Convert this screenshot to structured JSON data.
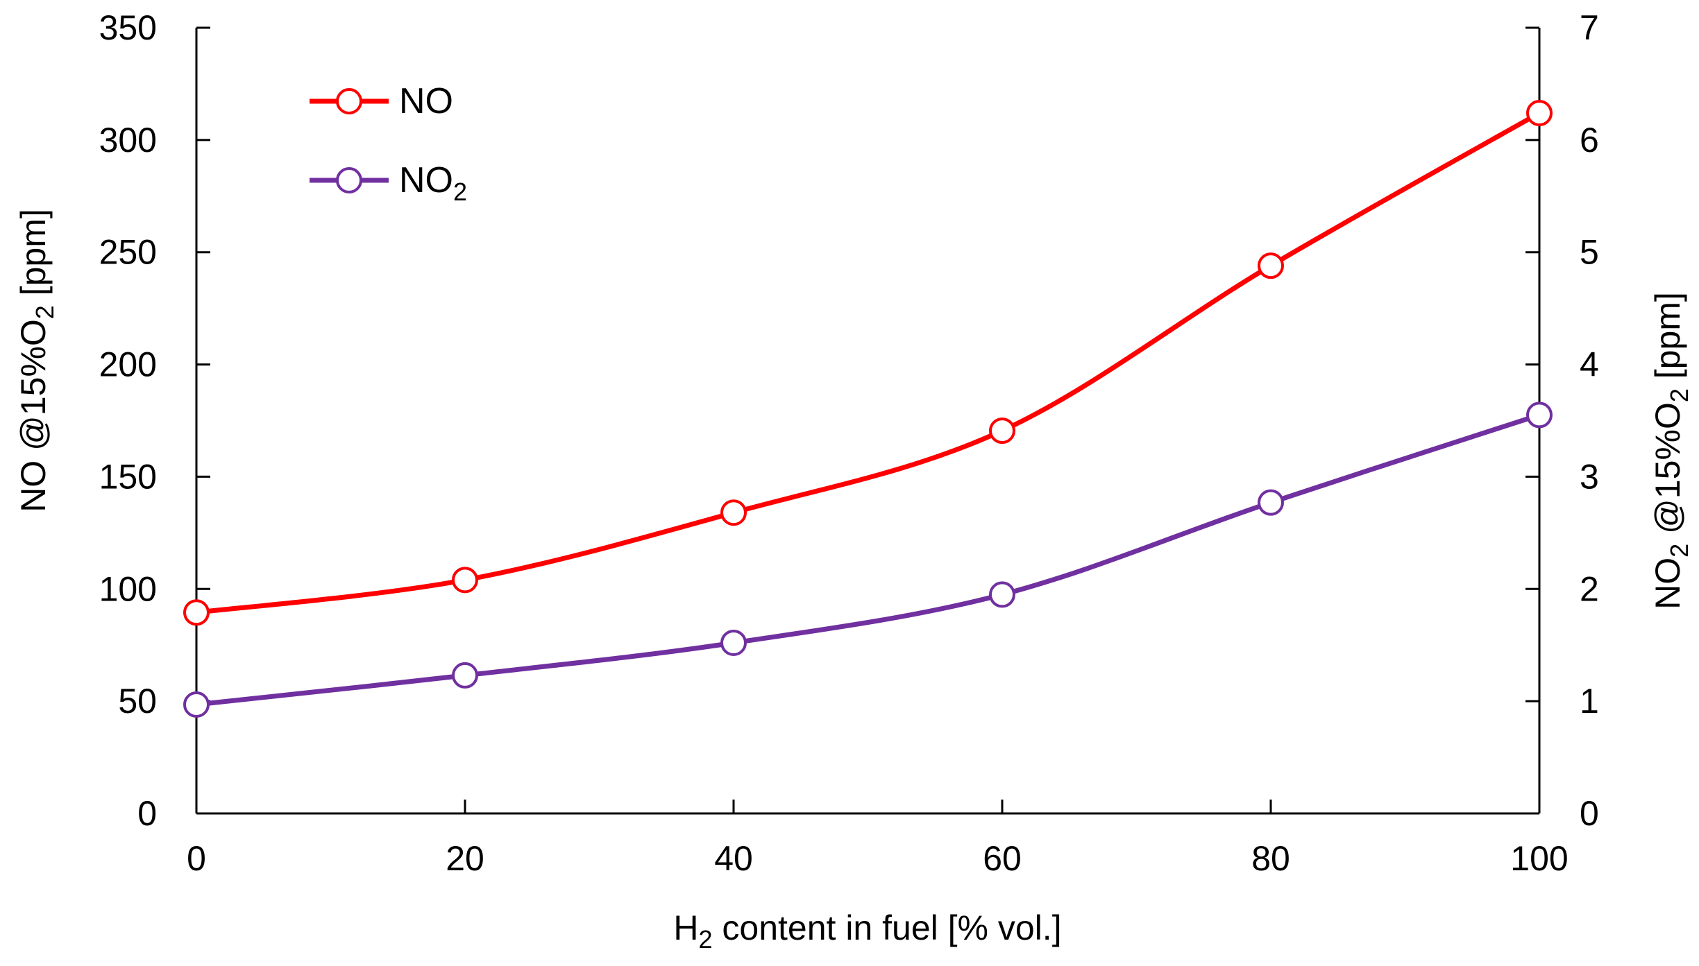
{
  "chart_data": {
    "type": "line",
    "title": "",
    "x": [
      0,
      20,
      40,
      60,
      80,
      100
    ],
    "xlim": [
      0,
      100
    ],
    "xticks": [
      0,
      20,
      40,
      60,
      80,
      100
    ],
    "xlabel": {
      "prefix": "H",
      "sub": "2",
      "suffix": " content in fuel [% vol.]"
    },
    "y_left": {
      "lim": [
        0,
        350
      ],
      "ticks": [
        0,
        50,
        100,
        150,
        200,
        250,
        300,
        350
      ],
      "label": {
        "prefix": "NO @15%O",
        "sub": "2",
        "suffix": " [ppm]"
      }
    },
    "y_right": {
      "lim": [
        0,
        7
      ],
      "ticks": [
        0,
        1,
        2,
        3,
        4,
        5,
        6,
        7
      ],
      "label": {
        "prefix": "NO",
        "sub1": "2",
        "middle": " @15%O",
        "sub2": "2",
        "suffix": " [ppm]"
      }
    },
    "series": [
      {
        "name": "NO",
        "name_sub": "",
        "axis": "left",
        "color": "#ff0000",
        "marker": "open-circle",
        "values": [
          89.5,
          104,
          134,
          170.5,
          244,
          312
        ]
      },
      {
        "name": "NO",
        "name_sub": "2",
        "axis": "right",
        "color": "#7030a0",
        "marker": "open-circle",
        "values": [
          0.97,
          1.23,
          1.52,
          1.95,
          2.77,
          3.55
        ]
      }
    ],
    "legend_position": "top-left",
    "grid": false
  }
}
